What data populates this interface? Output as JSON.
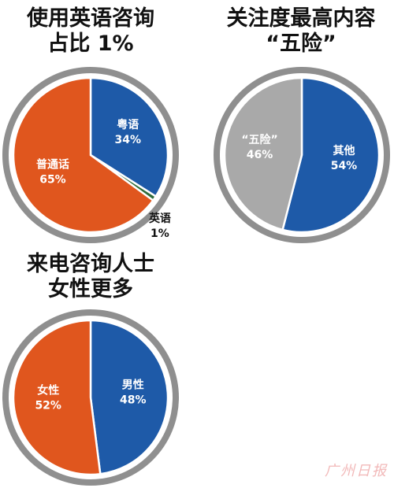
{
  "chart_data": [
    {
      "type": "pie",
      "title": [
        "使用英语咨询",
        "占比 1%"
      ],
      "slices": [
        {
          "label": "粤语",
          "pct": "34%",
          "value": 34,
          "color": "#1e5aa8",
          "label_pos": "inside"
        },
        {
          "label": "英语",
          "pct": "1%",
          "value": 1,
          "color": "#2f6b3a",
          "label_pos": "outside"
        },
        {
          "label": "普通话",
          "pct": "65%",
          "value": 65,
          "color": "#e0561e",
          "label_pos": "inside"
        }
      ]
    },
    {
      "type": "pie",
      "title": [
        "关注度最高内容",
        "“五险”"
      ],
      "slices": [
        {
          "label": "其他",
          "pct": "54%",
          "value": 54,
          "color": "#1e5aa8",
          "label_pos": "inside"
        },
        {
          "label": "“五险”",
          "pct": "46%",
          "value": 46,
          "color": "#a9a9a9",
          "label_pos": "inside"
        }
      ]
    },
    {
      "type": "pie",
      "title": [
        "来电咨询人士",
        "女性更多"
      ],
      "slices": [
        {
          "label": "男性",
          "pct": "48%",
          "value": 48,
          "color": "#1e5aa8",
          "label_pos": "inside"
        },
        {
          "label": "女性",
          "pct": "52%",
          "value": 52,
          "color": "#e0561e",
          "label_pos": "inside"
        }
      ]
    }
  ],
  "watermark": "广州日报",
  "colors": {
    "ring": "#8f8f8f",
    "inner_ring": "#ffffff"
  }
}
